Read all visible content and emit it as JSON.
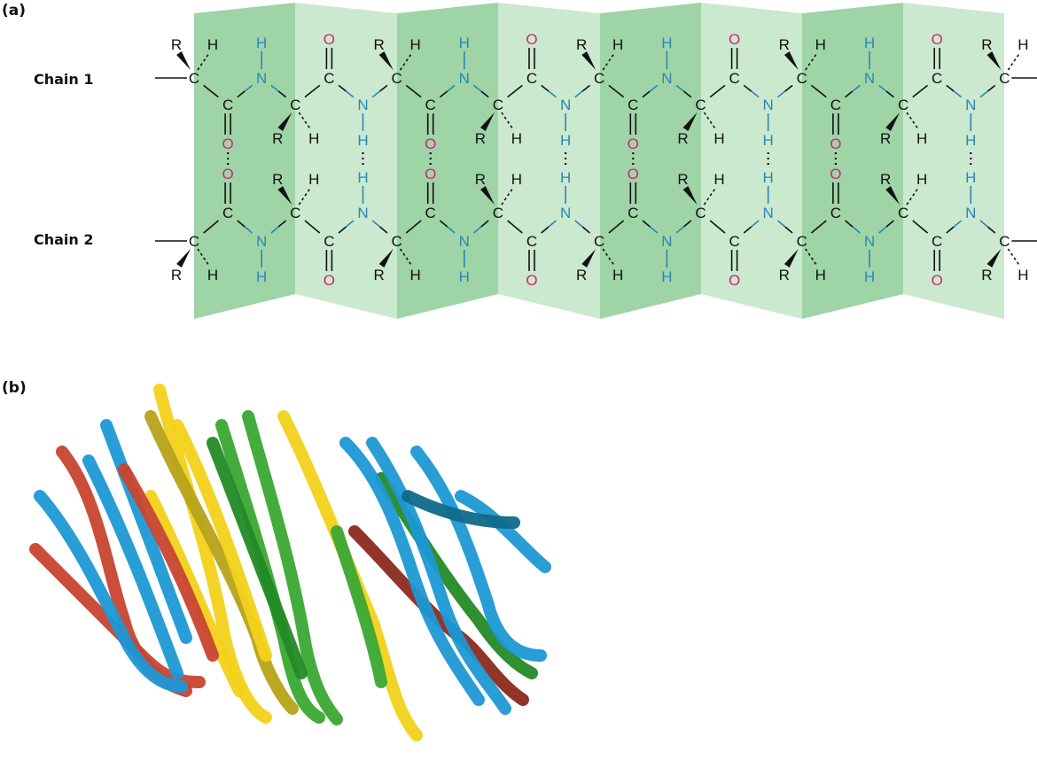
{
  "panel_a": {
    "label": "(a)",
    "chain1_label": "Chain 1",
    "chain2_label": "Chain 2",
    "atom_symbols": {
      "carbon": "C",
      "nitrogen": "N",
      "oxygen": "O",
      "hydrogen": "H",
      "side_chain": "R"
    },
    "colors": {
      "carbon_bonds": "#111111",
      "nitrogen": "#2a86b8",
      "oxygen": "#d4237a",
      "panel_dark": "#9fd4a6",
      "panel_light": "#cbe9cf"
    }
  },
  "panel_b": {
    "label": "(b)",
    "ribbon_colors": [
      "#1c98d4",
      "#c8452f",
      "#f2d21a",
      "#3aa832",
      "#0f6a88",
      "#8c2a1e",
      "#b6a319",
      "#238a25"
    ]
  }
}
